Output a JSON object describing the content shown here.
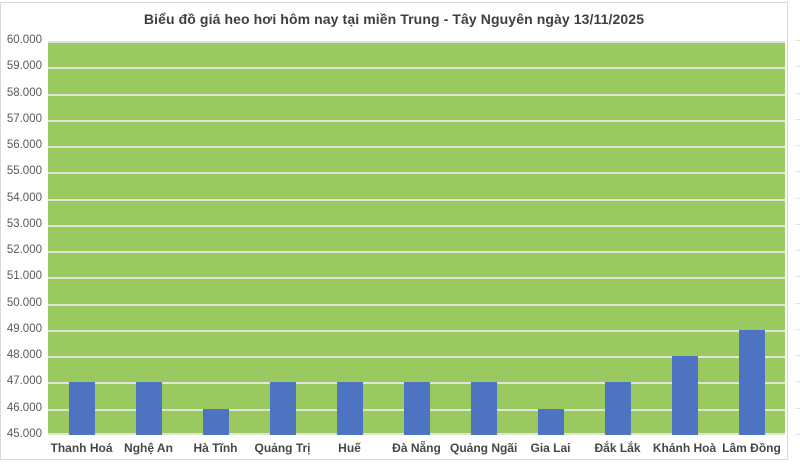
{
  "window": {
    "background": "#ffffff",
    "border_color": "#d9d9d9"
  },
  "chart_data": {
    "type": "bar",
    "title": "Biểu đồ giá heo hơi hôm nay tại miền Trung - Tây Nguyên ngày 13/11/2025",
    "xlabel": "",
    "ylabel": "",
    "categories": [
      "Thanh Hoá",
      "Nghệ An",
      "Hà Tĩnh",
      "Quảng Trị",
      "Huế",
      "Đà Nẵng",
      "Quảng Ngãi",
      "Gia Lai",
      "Đắk Lắk",
      "Khánh Hoà",
      "Lâm Đồng"
    ],
    "values": [
      47000,
      47000,
      46000,
      47000,
      47000,
      47000,
      47000,
      46000,
      47000,
      48000,
      49000
    ],
    "ylim": [
      45000,
      60000
    ],
    "ytick_step": 1000,
    "ytick_labels": [
      "60.000",
      "59.000",
      "58.000",
      "57.000",
      "56.000",
      "55.000",
      "54.000",
      "53.000",
      "52.000",
      "51.000",
      "50.000",
      "49.000",
      "48.000",
      "47.000",
      "46.000",
      "45.000"
    ],
    "grid": true,
    "legend_position": "none",
    "colors": {
      "bar": "#4d73c2",
      "plot_background": "#9aca5f",
      "gridline": "#dfe3d8",
      "title_text": "#3f3f3f",
      "tick_text": "#595959",
      "category_text": "#474747"
    }
  }
}
